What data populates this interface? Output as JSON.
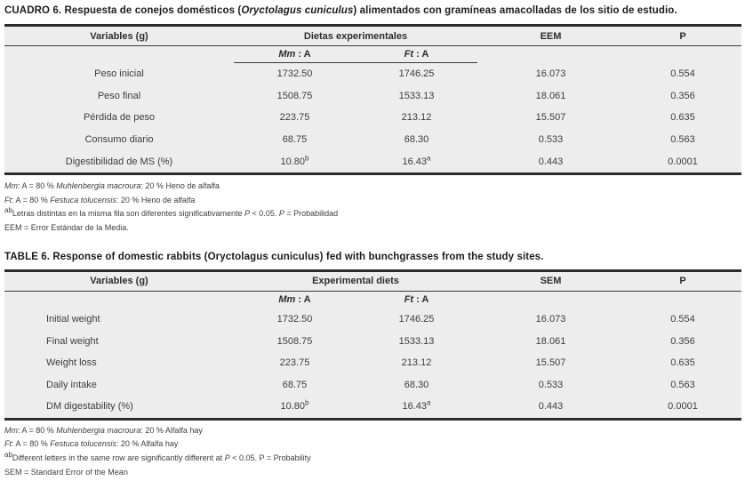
{
  "colors": {
    "table_bg": "#ededed",
    "rule_heavy": "#2c2c2c",
    "rule_light": "#3a3a3a",
    "text": "#3d3d3d",
    "title_text": "#1c1c1c"
  },
  "sections": [
    {
      "lang": "es",
      "title": [
        {
          "t": "CUADRO 6. Respuesta de conejos domésticos ("
        },
        {
          "t": "Oryctolagus cuniculus",
          "i": true
        },
        {
          "t": ") alimentados con gramíneas amacolladas de los sitio de estudio."
        }
      ],
      "columns": {
        "variables": "Variables (g)",
        "diets": "Dietas experimentales",
        "sem": "EEM",
        "p": "P"
      },
      "subcols": {
        "mm": [
          {
            "t": "Mm",
            "i": true
          },
          {
            "t": " : A"
          }
        ],
        "ft": [
          {
            "t": "Ft",
            "i": true
          },
          {
            "t": " : A"
          }
        ]
      },
      "rows": [
        {
          "label": "Peso inicial",
          "mm": "1732.50",
          "mm_sup": "",
          "ft": "1746.25",
          "ft_sup": "",
          "sem": "16.073",
          "p": "0.554"
        },
        {
          "label": "Peso final",
          "mm": "1508.75",
          "mm_sup": "",
          "ft": "1533.13",
          "ft_sup": "",
          "sem": "18.061",
          "p": "0.356"
        },
        {
          "label": "Pérdida de peso",
          "mm": "223.75",
          "mm_sup": "",
          "ft": "213.12",
          "ft_sup": "",
          "sem": "15.507",
          "p": "0.635"
        },
        {
          "label": "Consumo diario",
          "mm": "68.75",
          "mm_sup": "",
          "ft": "68.30",
          "ft_sup": "",
          "sem": "0.533",
          "p": "0.563"
        },
        {
          "label": "Digestibilidad de MS (%)",
          "mm": "10.80",
          "mm_sup": "b",
          "ft": "16.43",
          "ft_sup": "a",
          "sem": "0.443",
          "p": "0.0001"
        }
      ],
      "footnotes": [
        [
          {
            "t": "Mm",
            "i": true
          },
          {
            "t": ": A = 80 % "
          },
          {
            "t": "Muhlenbergia macroura",
            "i": true
          },
          {
            "t": ": 20 % Heno de alfalfa"
          }
        ],
        [
          {
            "t": "Ft",
            "i": true
          },
          {
            "t": ": A = 80 % "
          },
          {
            "t": "Festuca tolucensis",
            "i": true
          },
          {
            "t": ": 20 % Heno de alfalfa"
          }
        ],
        [
          {
            "t": "ab",
            "sup": true
          },
          {
            "t": "Letras distintas en la misma fila son diferentes significativamente "
          },
          {
            "t": "P",
            "i": true
          },
          {
            "t": " < 0.05. "
          },
          {
            "t": "P",
            "i": true
          },
          {
            "t": " = Probabilidad"
          }
        ],
        [
          {
            "t": "EEM = Error Estándar de la Media."
          }
        ]
      ]
    },
    {
      "lang": "en",
      "title": [
        {
          "t": "TABLE 6. Response of domestic rabbits (Oryctolagus cuniculus) fed with bunchgrasses from the study sites."
        }
      ],
      "columns": {
        "variables": "Variables (g)",
        "diets": "Experimental diets",
        "sem": "SEM",
        "p": "P"
      },
      "subcols": {
        "mm": [
          {
            "t": "Mm",
            "i": true
          },
          {
            "t": " : A"
          }
        ],
        "ft": [
          {
            "t": "Ft",
            "i": true
          },
          {
            "t": " : A"
          }
        ]
      },
      "rows": [
        {
          "label": "Initial weight",
          "mm": "1732.50",
          "mm_sup": "",
          "ft": "1746.25",
          "ft_sup": "",
          "sem": "16.073",
          "p": "0.554"
        },
        {
          "label": "Final weight",
          "mm": "1508.75",
          "mm_sup": "",
          "ft": "1533.13",
          "ft_sup": "",
          "sem": "18.061",
          "p": "0.356"
        },
        {
          "label": "Weight loss",
          "mm": "223.75",
          "mm_sup": "",
          "ft": "213.12",
          "ft_sup": "",
          "sem": "15.507",
          "p": "0.635"
        },
        {
          "label": "Daily intake",
          "mm": "68.75",
          "mm_sup": "",
          "ft": "68.30",
          "ft_sup": "",
          "sem": "0.533",
          "p": "0.563"
        },
        {
          "label": "DM digestability (%)",
          "mm": "10.80",
          "mm_sup": "b",
          "ft": "16.43",
          "ft_sup": "a",
          "sem": "0.443",
          "p": "0.0001"
        }
      ],
      "footnotes": [
        [
          {
            "t": "Mm",
            "i": true
          },
          {
            "t": ": A = 80 % "
          },
          {
            "t": "Muhlenbergia macroura",
            "i": true
          },
          {
            "t": ": 20 % Alfalfa hay"
          }
        ],
        [
          {
            "t": "Ft",
            "i": true
          },
          {
            "t": ": A = 80 % "
          },
          {
            "t": "Festuca tolucensis",
            "i": true
          },
          {
            "t": ": 20 % Alfalfa hay"
          }
        ],
        [
          {
            "t": "ab",
            "sup": true
          },
          {
            "t": "Different letters in the same row are significantly different at "
          },
          {
            "t": "P",
            "i": true
          },
          {
            "t": " < 0.05. P = Probability"
          }
        ],
        [
          {
            "t": "SEM = Standard Error of the Mean"
          }
        ]
      ]
    }
  ]
}
